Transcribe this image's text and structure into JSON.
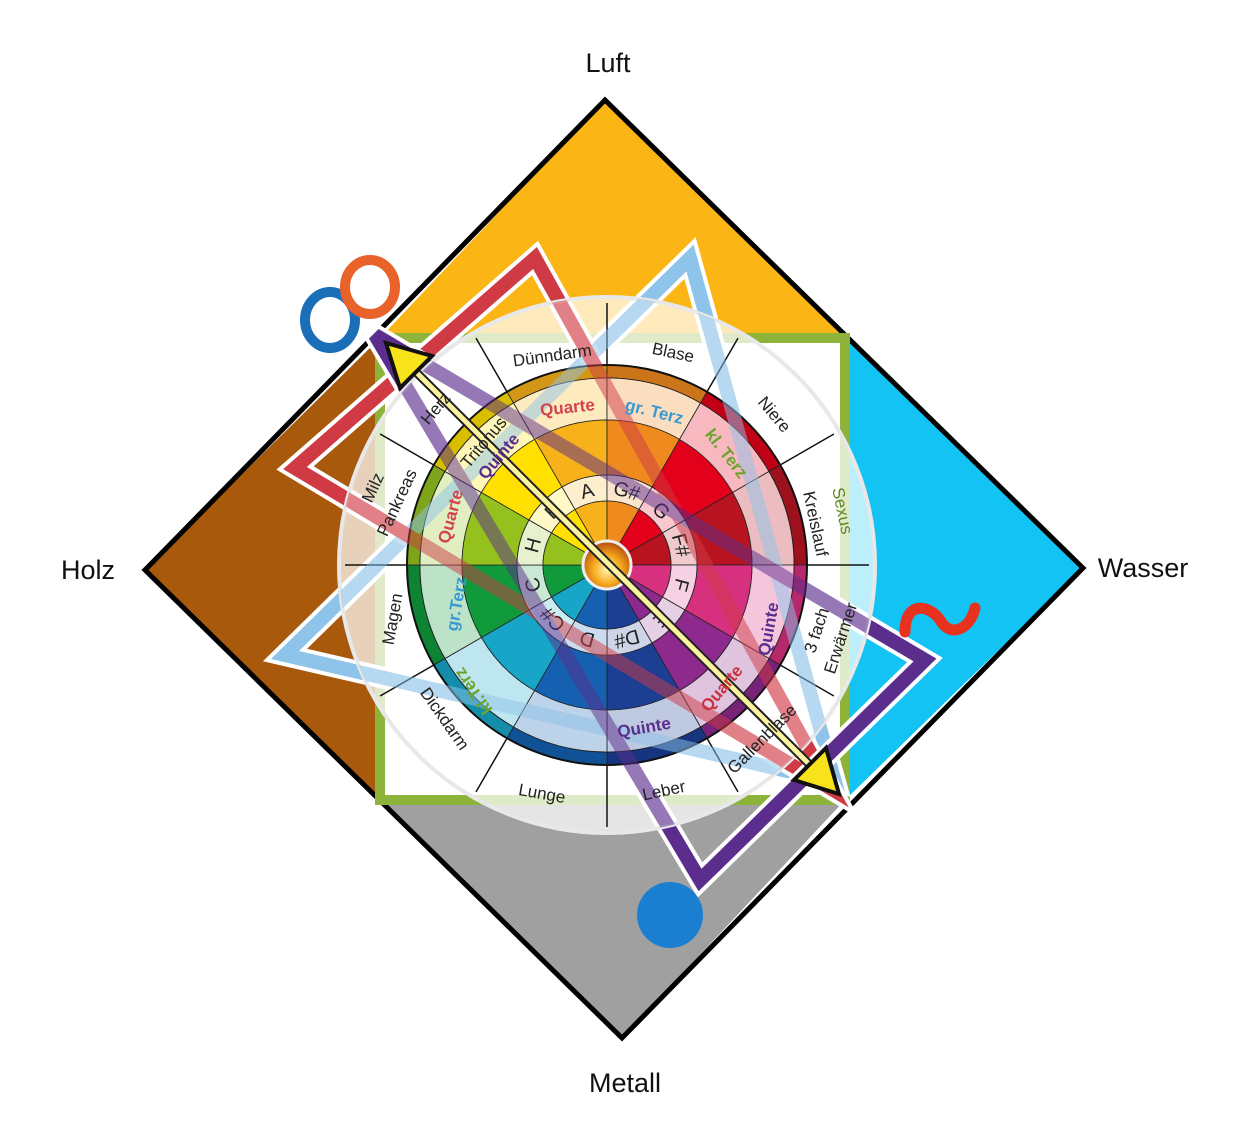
{
  "elements": {
    "top": "Luft",
    "left": "Holz",
    "right": "Wasser",
    "bottom": "Metall"
  },
  "notes": [
    "A",
    "G#",
    "G",
    "F#",
    "F",
    "E",
    "D#",
    "D",
    "C#",
    "C",
    "H",
    "B"
  ],
  "note_colors": [
    "#f7b21b",
    "#ef8a1f",
    "#e2001a",
    "#b81420",
    "#d6307f",
    "#8e2a8e",
    "#1c3f94",
    "#1560b0",
    "#17a6c8",
    "#119a3c",
    "#95c11f",
    "#ffe000"
  ],
  "intervals": {
    "quarte_top": "Quarte",
    "grterz_top": "gr. Terz",
    "klterz_right": "kl. Terz",
    "quinte_right": "Quinte",
    "quarte_bottomright": "Quarte",
    "quinte_bottom": "Quinte",
    "klterz_left": "kl.Terz",
    "grterz_left": "gr.Terz",
    "quarte_left": "Quarte",
    "tritonus": "Tritonus",
    "quinte_topleft": "Quinte"
  },
  "organs": {
    "duenndarm": "Dünndarm",
    "blase": "Blase",
    "niere": "Niere",
    "kreislauf": "Kreislauf",
    "sexus": "Sexus",
    "dreifach": "3 fach",
    "erwaermer": "Erwärmer",
    "gallenblase": "Gallenblase",
    "leber": "Leber",
    "lunge": "Lunge",
    "dickdarm": "Dickdarm",
    "magen": "Magen",
    "milz": "Milz",
    "pankreas": "Pankreas",
    "herz": "Herz"
  },
  "colors": {
    "luft": "#fbb515",
    "wasser": "#12c3f4",
    "metall": "#a0a0a0",
    "holz": "#a8590c",
    "square": "#8db33a",
    "triangle_red": "#cf3a45",
    "triangle_purple": "#5b2d8c",
    "triangle_blue": "#8ec3ea",
    "arrow": "#f8e21a"
  },
  "symbols": [
    "infinity-rings-icon",
    "tilde-wave-icon",
    "filled-circle-icon",
    "flame-icon"
  ]
}
